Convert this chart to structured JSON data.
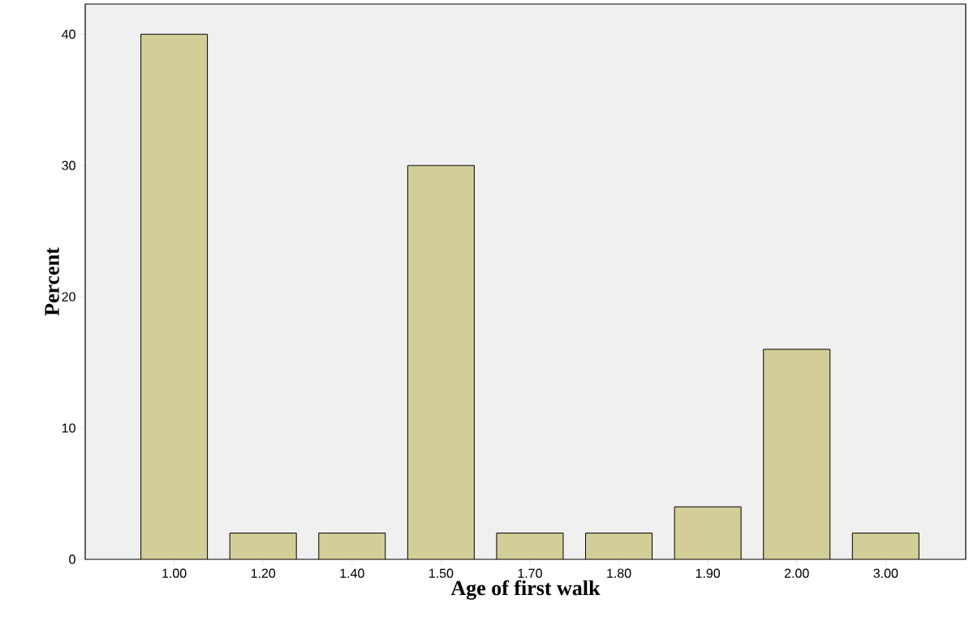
{
  "chart_data": {
    "type": "bar",
    "xlabel": "Age of first walk",
    "ylabel": "Percent",
    "categories": [
      "1.00",
      "1.20",
      "1.40",
      "1.50",
      "1.70",
      "1.80",
      "1.90",
      "2.00",
      "3.00"
    ],
    "values": [
      40,
      2,
      2,
      30,
      2,
      2,
      4,
      16,
      2
    ],
    "color": "#d3ce98",
    "ylim": [
      0,
      42.3
    ],
    "yticks": [
      0,
      10,
      20,
      30,
      40
    ],
    "grid": false
  }
}
